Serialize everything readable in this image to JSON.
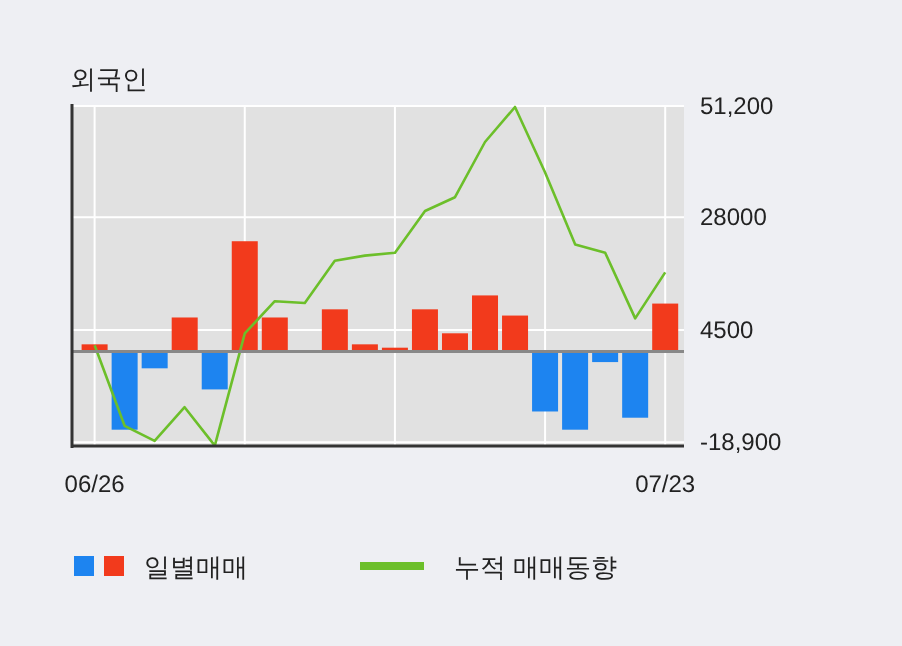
{
  "chart_data": {
    "type": "bar",
    "title": "외국인",
    "categories": [
      "06/26",
      null,
      null,
      null,
      null,
      null,
      null,
      null,
      null,
      null,
      null,
      null,
      null,
      null,
      null,
      null,
      null,
      null,
      null,
      "07/23"
    ],
    "grid": true,
    "legend": "bottom",
    "series": [
      {
        "name": "일별매매",
        "axis": "y2",
        "colors": [
          "#f23a1c",
          "#1d84f0",
          "#1d84f0",
          "#f23a1c",
          "#1d84f0",
          "#f23a1c",
          "#f23a1c",
          "#f23a1c",
          "#f23a1c",
          "#f23a1c",
          "#f23a1c",
          "#f23a1c",
          "#f23a1c",
          "#f23a1c",
          "#f23a1c",
          "#1d84f0",
          "#1d84f0",
          "#1d84f0",
          "#1d84f0",
          "#f23a1c"
        ],
        "values": [
          1500,
          -16300,
          -3500,
          7100,
          -7900,
          23000,
          7100,
          0,
          8800,
          1500,
          800,
          8800,
          3800,
          11700,
          7500,
          -12500,
          -16300,
          -2200,
          -13800,
          10000
        ]
      },
      {
        "type": "line",
        "name": "누적 매매동향",
        "axis": "y2",
        "color": "#6cbf2a",
        "values": [
          1300,
          -15500,
          -18600,
          -11600,
          -19600,
          3800,
          10500,
          10100,
          18900,
          20000,
          20600,
          29300,
          32200,
          43700,
          51000,
          37400,
          22300,
          20600,
          6900,
          16500
        ]
      }
    ],
    "y2lim": [
      -19700,
      51200
    ],
    "y2ticks": [
      {
        "value": 51200,
        "label": "51,200"
      },
      28000,
      4500,
      {
        "value": -18900,
        "label": "-18,900"
      }
    ]
  }
}
